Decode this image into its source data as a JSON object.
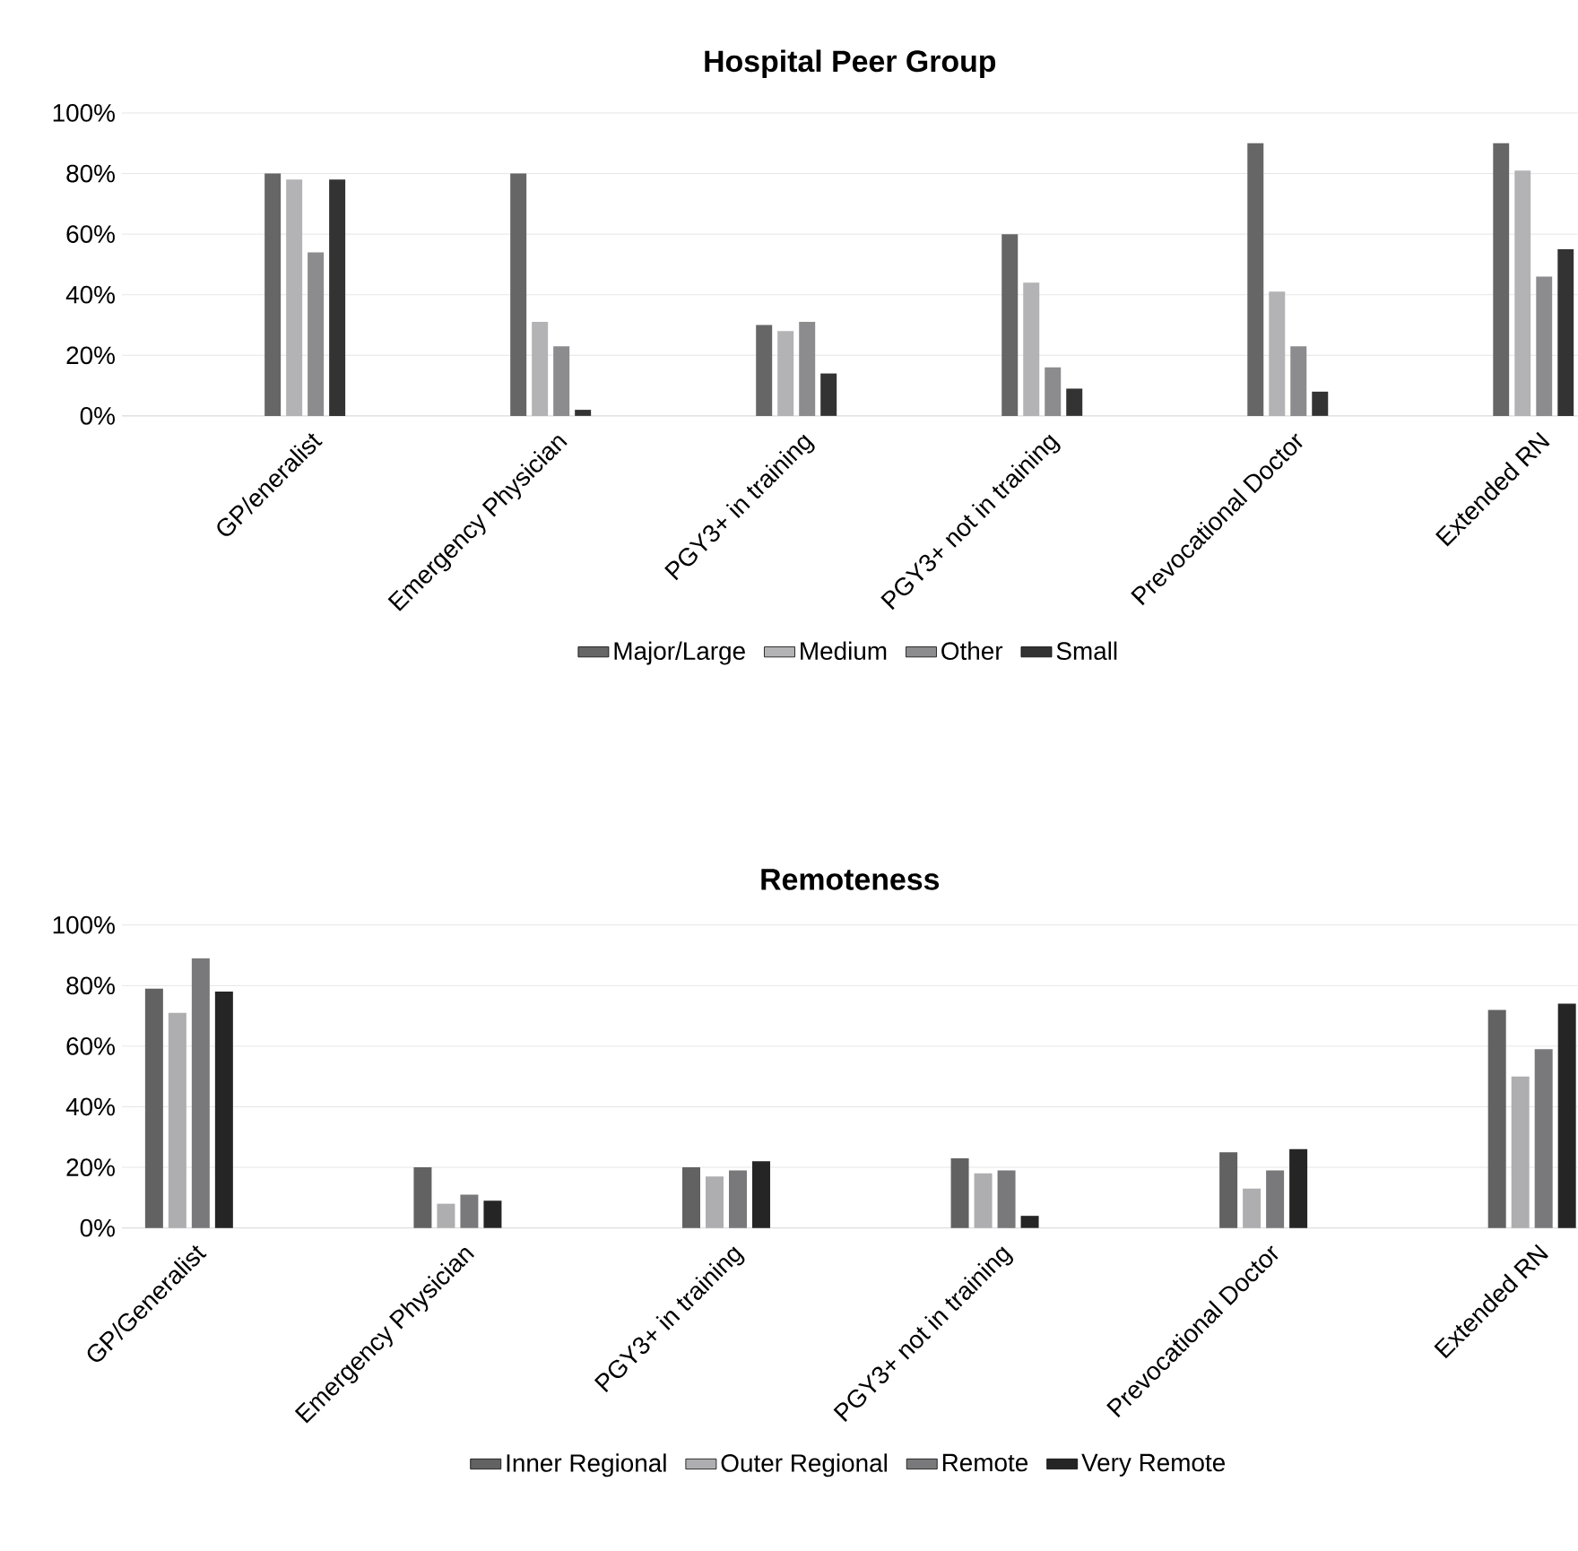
{
  "chart_data": [
    {
      "type": "bar",
      "title": "Hospital Peer Group",
      "categories": [
        "GP/eneralist",
        "Emergency Physician",
        "PGY3+ in training",
        "PGY3+ not in training",
        "Prevocational Doctor",
        "Extended RN"
      ],
      "series": [
        {
          "name": "Major/Large",
          "color": "#666666",
          "values": [
            80,
            80,
            30,
            60,
            90,
            90
          ]
        },
        {
          "name": "Medium",
          "color": "#b3b3b5",
          "values": [
            78,
            31,
            28,
            44,
            41,
            81
          ]
        },
        {
          "name": "Other",
          "color": "#8c8c8e",
          "values": [
            54,
            23,
            31,
            16,
            23,
            46
          ]
        },
        {
          "name": "Small",
          "color": "#333333",
          "values": [
            78,
            2,
            14,
            9,
            8,
            55
          ]
        }
      ],
      "ylim": [
        0,
        100
      ],
      "yticks": [
        {
          "value": 0,
          "label": "0%"
        },
        {
          "value": 20,
          "label": "20%"
        },
        {
          "value": 40,
          "label": "40%"
        },
        {
          "value": 60,
          "label": "60%"
        },
        {
          "value": 80,
          "label": "80%"
        },
        {
          "value": 100,
          "label": "100%"
        }
      ],
      "grid": "y",
      "legend": "bottom"
    },
    {
      "type": "bar",
      "title": "Remoteness",
      "categories": [
        "GP/Generalist",
        "Emergency Physician",
        "PGY3+ in training",
        "PGY3+ not in training",
        "Prevocational Doctor",
        "Extended RN"
      ],
      "series": [
        {
          "name": "Inner Regional",
          "color": "#626262",
          "values": [
            79,
            20,
            20,
            23,
            25,
            72
          ]
        },
        {
          "name": "Outer Regional",
          "color": "#aeaeb0",
          "values": [
            71,
            8,
            17,
            18,
            13,
            50
          ]
        },
        {
          "name": "Remote",
          "color": "#79797b",
          "values": [
            89,
            11,
            19,
            19,
            19,
            59
          ]
        },
        {
          "name": "Very Remote",
          "color": "#252525",
          "values": [
            78,
            9,
            22,
            4,
            26,
            74
          ]
        }
      ],
      "ylim": [
        0,
        100
      ],
      "yticks": [
        {
          "value": 0,
          "label": "0%"
        },
        {
          "value": 20,
          "label": "20%"
        },
        {
          "value": 40,
          "label": "40%"
        },
        {
          "value": 60,
          "label": "60%"
        },
        {
          "value": 80,
          "label": "80%"
        },
        {
          "value": 100,
          "label": "100%"
        }
      ],
      "grid": "y",
      "legend": "bottom"
    }
  ]
}
